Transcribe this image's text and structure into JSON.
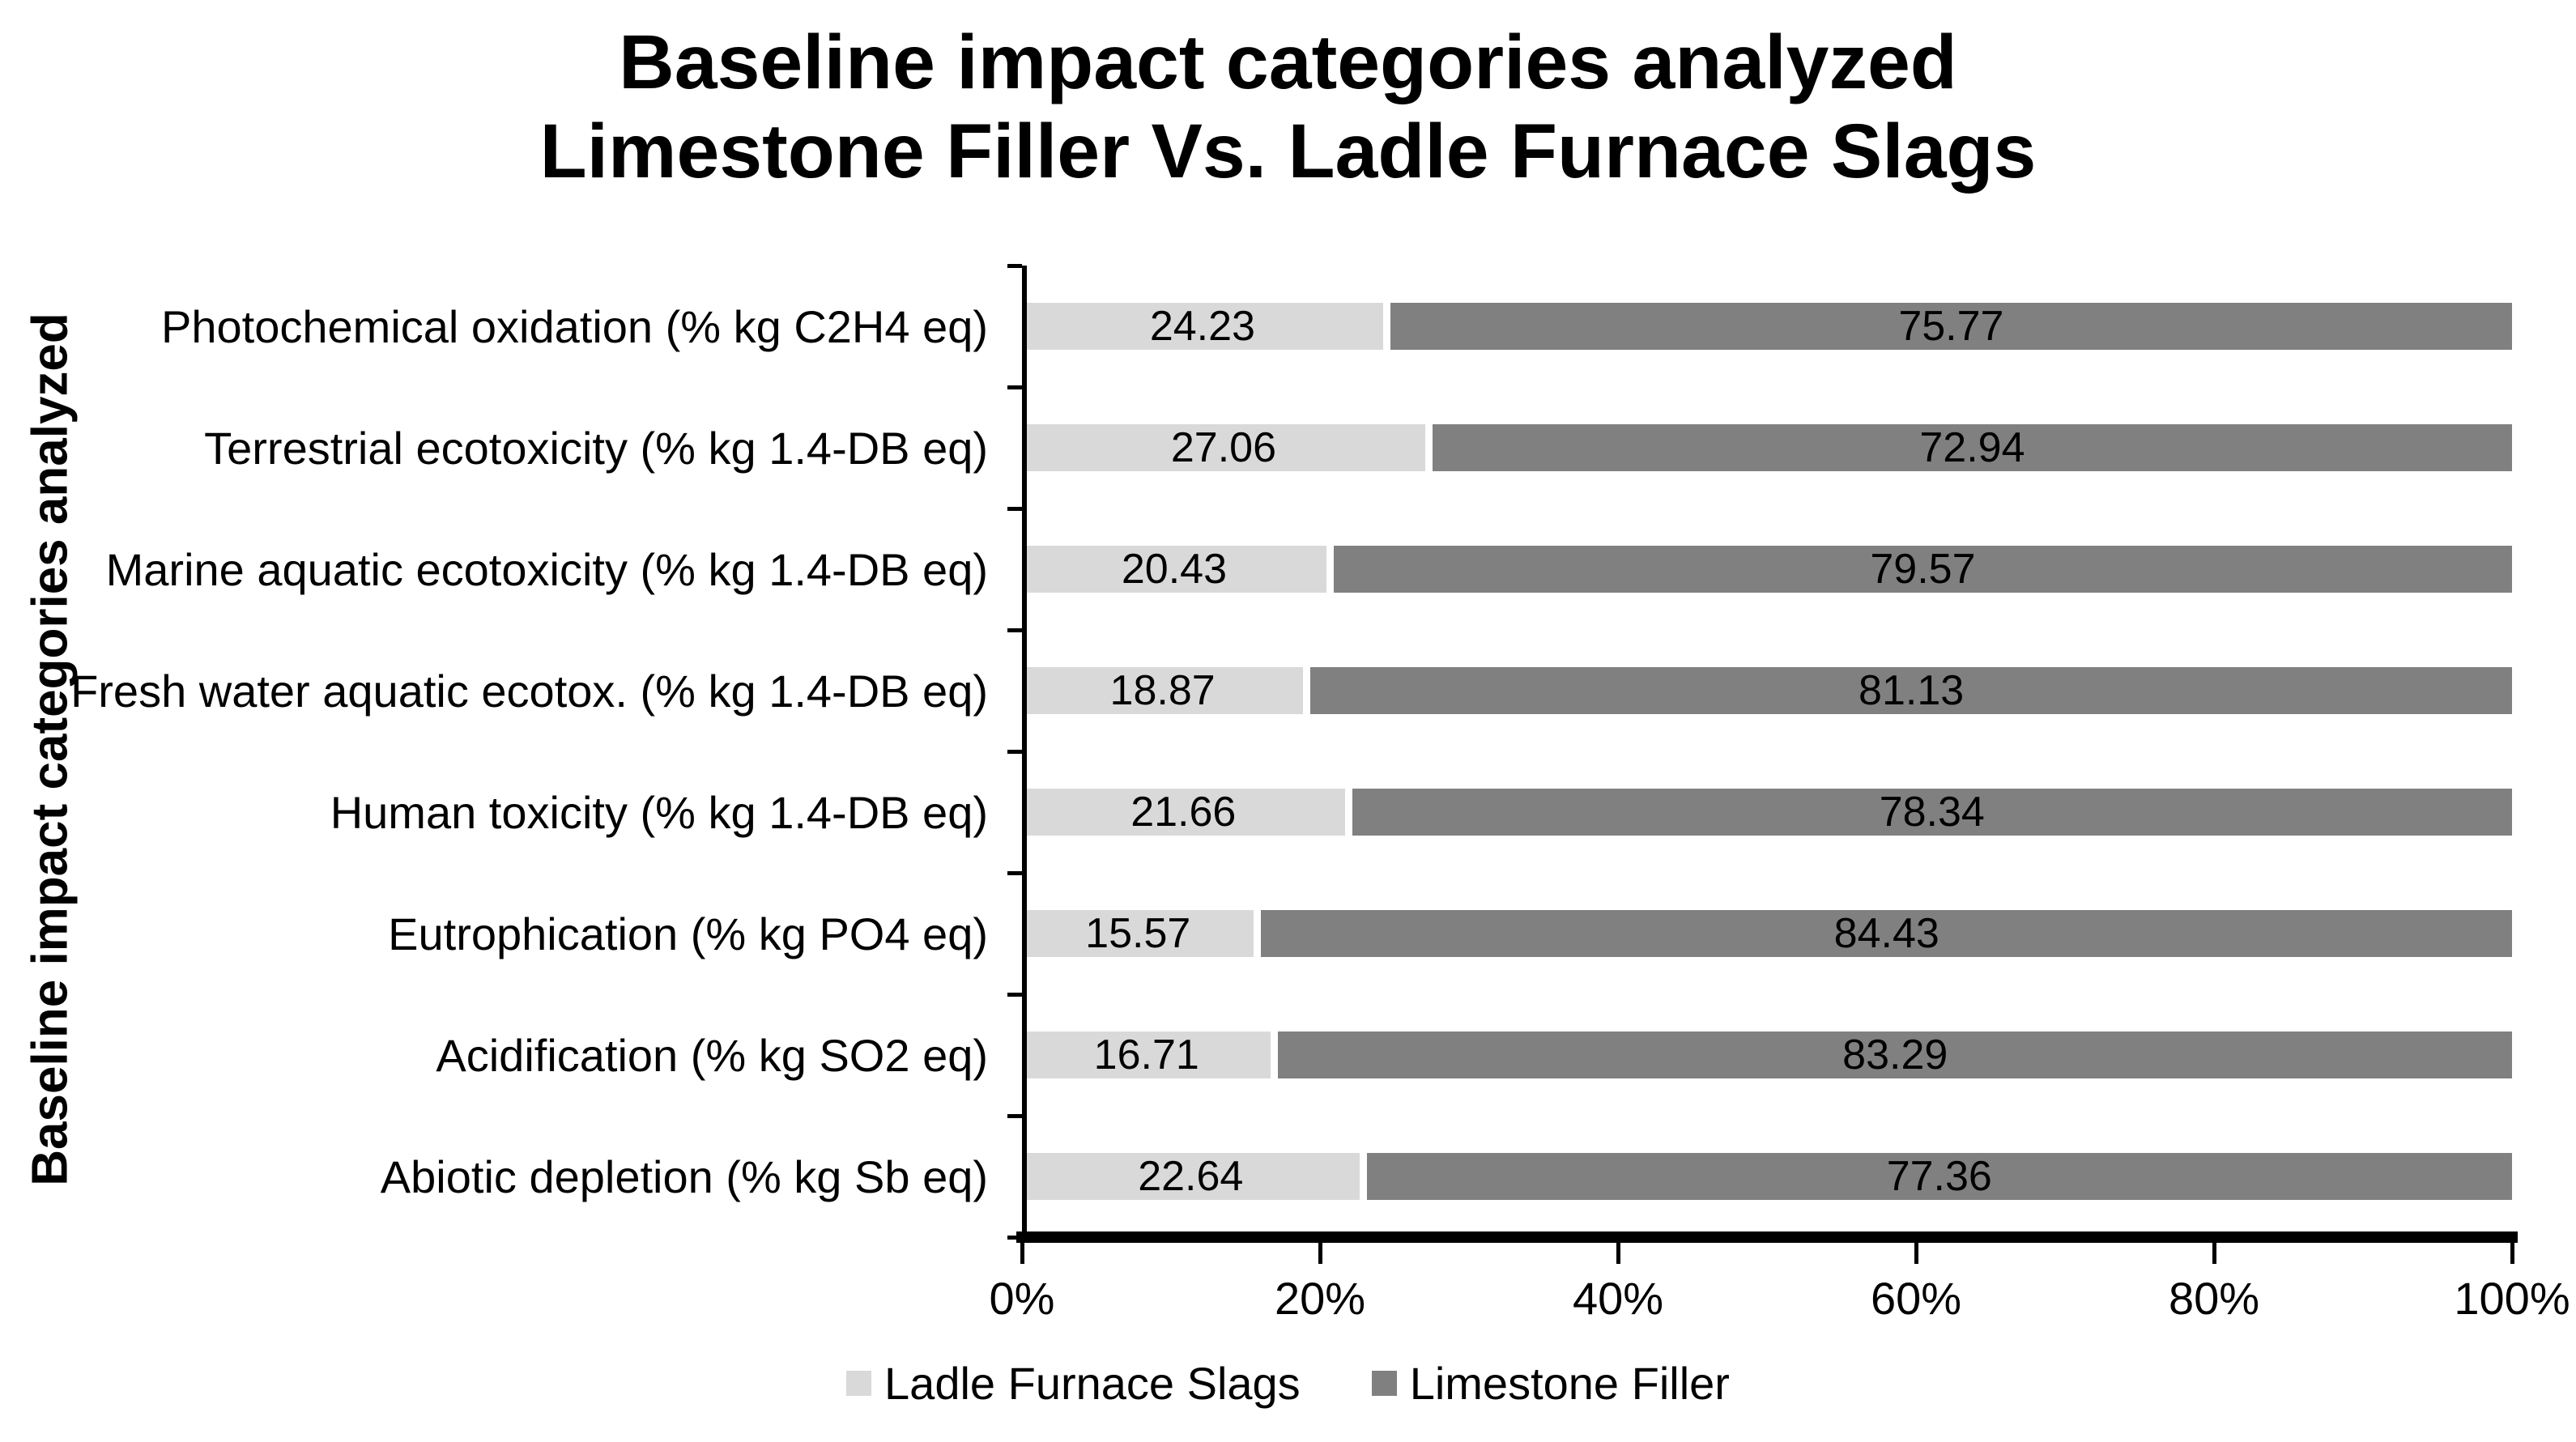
{
  "title": {
    "line1": "Baseline impact categories analyzed",
    "line2": "Limestone Filler Vs. Ladle Furnace Slags"
  },
  "colors": {
    "ladle_furnace_slags": "#d9d9d9",
    "limestone_filler": "#808080",
    "axis": "#000000",
    "background": "#ffffff"
  },
  "chart_data": {
    "type": "bar",
    "orientation": "horizontal",
    "stacked": true,
    "title": "Baseline impact categories analyzed Limestone Filler Vs. Ladle Furnace Slags",
    "xlabel": "",
    "ylabel": "Baseline impact categories analyzed",
    "xlim": [
      0,
      100
    ],
    "x_tick_labels": [
      "0%",
      "20%",
      "40%",
      "60%",
      "80%",
      "100%"
    ],
    "grid": false,
    "legend_position": "bottom",
    "value_labels": true,
    "categories_order": "top-to-bottom",
    "categories": [
      "Photochemical oxidation (% kg C2H4 eq)",
      "Terrestrial ecotoxicity (% kg 1.4-DB eq)",
      "Marine aquatic ecotoxicity (% kg 1.4-DB eq)",
      "Fresh water aquatic ecotox. (% kg 1.4-DB eq)",
      "Human toxicity (% kg 1.4-DB eq)",
      "Eutrophication (% kg PO4 eq)",
      "Acidification (% kg SO2 eq)",
      "Abiotic depletion (% kg Sb eq)"
    ],
    "series": [
      {
        "name": "Ladle Furnace Slags",
        "color": "#d9d9d9",
        "values": [
          24.23,
          27.06,
          20.43,
          18.87,
          21.66,
          15.57,
          16.71,
          22.64
        ]
      },
      {
        "name": "Limestone Filler",
        "color": "#808080",
        "values": [
          75.77,
          72.94,
          79.57,
          81.13,
          78.34,
          84.43,
          83.29,
          77.36
        ]
      }
    ]
  }
}
